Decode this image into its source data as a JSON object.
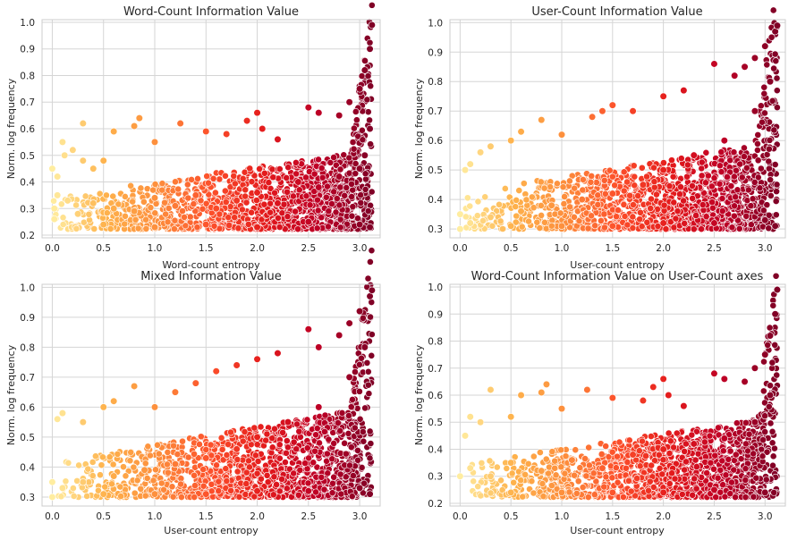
{
  "chart_data": [
    {
      "type": "scatter",
      "title": "Word-Count Information Value",
      "xlabel": "Word-count entropy",
      "ylabel": "Norm. log frequency",
      "xlim": [
        -0.1,
        3.2
      ],
      "ylim": [
        0.19,
        1.01
      ],
      "xticks": [
        "0.0",
        "0.5",
        "1.0",
        "1.5",
        "2.0",
        "2.5",
        "3.0"
      ],
      "yticks": [
        "0.2",
        "0.3",
        "0.4",
        "0.5",
        "0.6",
        "0.7",
        "0.8",
        "0.9",
        "1.0"
      ],
      "grid": true,
      "colormap": [
        "#ffeda0",
        "#feb24c",
        "#fd8d3c",
        "#fc4e2a",
        "#e31a1c",
        "#bd0026",
        "#800026"
      ],
      "points": [
        [
          0.0,
          0.45
        ],
        [
          0.05,
          0.42
        ],
        [
          0.1,
          0.55
        ],
        [
          0.12,
          0.5
        ],
        [
          0.2,
          0.52
        ],
        [
          0.3,
          0.62
        ],
        [
          0.3,
          0.48
        ],
        [
          0.4,
          0.45
        ],
        [
          0.5,
          0.48
        ],
        [
          0.6,
          0.59
        ],
        [
          0.8,
          0.61
        ],
        [
          0.85,
          0.64
        ],
        [
          1.0,
          0.55
        ],
        [
          1.25,
          0.62
        ],
        [
          1.5,
          0.59
        ],
        [
          1.7,
          0.58
        ],
        [
          1.9,
          0.63
        ],
        [
          2.0,
          0.66
        ],
        [
          2.05,
          0.6
        ],
        [
          2.2,
          0.56
        ],
        [
          2.5,
          0.68
        ],
        [
          2.6,
          0.66
        ],
        [
          2.8,
          0.65
        ],
        [
          2.9,
          0.7
        ],
        [
          3.0,
          0.75
        ],
        [
          3.05,
          0.82
        ],
        [
          3.1,
          0.9
        ],
        [
          3.12,
          0.99
        ],
        [
          0.02,
          0.3
        ],
        [
          0.02,
          0.26
        ],
        [
          0.05,
          0.35
        ],
        [
          0.15,
          0.33
        ],
        [
          0.25,
          0.28
        ],
        [
          0.4,
          0.32
        ],
        [
          0.6,
          0.3
        ],
        [
          0.8,
          0.29
        ],
        [
          1.0,
          0.34
        ],
        [
          1.2,
          0.31
        ],
        [
          1.4,
          0.35
        ],
        [
          1.6,
          0.3
        ],
        [
          1.8,
          0.33
        ],
        [
          2.0,
          0.36
        ],
        [
          2.2,
          0.32
        ],
        [
          2.4,
          0.4
        ],
        [
          2.6,
          0.38
        ],
        [
          2.8,
          0.42
        ],
        [
          3.0,
          0.45
        ],
        [
          3.05,
          0.5
        ],
        [
          3.1,
          0.6
        ],
        [
          0.5,
          0.24
        ],
        [
          1.0,
          0.23
        ],
        [
          1.5,
          0.24
        ],
        [
          2.0,
          0.23
        ],
        [
          2.5,
          0.25
        ],
        [
          3.0,
          0.24
        ],
        [
          3.1,
          0.23
        ]
      ]
    },
    {
      "type": "scatter",
      "title": "User-Count Information Value",
      "xlabel": "User-count entropy",
      "ylabel": "Norm. log frequency",
      "xlim": [
        -0.1,
        3.2
      ],
      "ylim": [
        0.27,
        1.01
      ],
      "xticks": [
        "0.0",
        "0.5",
        "1.0",
        "1.5",
        "2.0",
        "2.5",
        "3.0"
      ],
      "yticks": [
        "0.3",
        "0.4",
        "0.5",
        "0.6",
        "0.7",
        "0.8",
        "0.9",
        "1.0"
      ],
      "grid": true,
      "colormap": [
        "#ffeda0",
        "#feb24c",
        "#fd8d3c",
        "#fc4e2a",
        "#e31a1c",
        "#bd0026",
        "#800026"
      ],
      "points": [
        [
          0.0,
          0.3
        ],
        [
          0.0,
          0.35
        ],
        [
          0.05,
          0.5
        ],
        [
          0.1,
          0.52
        ],
        [
          0.2,
          0.56
        ],
        [
          0.3,
          0.58
        ],
        [
          0.5,
          0.6
        ],
        [
          0.6,
          0.63
        ],
        [
          0.8,
          0.67
        ],
        [
          1.0,
          0.62
        ],
        [
          1.3,
          0.68
        ],
        [
          1.4,
          0.7
        ],
        [
          1.5,
          0.72
        ],
        [
          1.7,
          0.7
        ],
        [
          2.0,
          0.75
        ],
        [
          2.2,
          0.77
        ],
        [
          2.5,
          0.86
        ],
        [
          2.7,
          0.82
        ],
        [
          2.8,
          0.85
        ],
        [
          2.9,
          0.88
        ],
        [
          3.0,
          0.92
        ],
        [
          3.1,
          0.97
        ],
        [
          3.12,
          0.99
        ],
        [
          0.1,
          0.32
        ],
        [
          0.3,
          0.34
        ],
        [
          0.6,
          0.36
        ],
        [
          0.9,
          0.38
        ],
        [
          1.2,
          0.4
        ],
        [
          1.5,
          0.42
        ],
        [
          1.8,
          0.45
        ],
        [
          2.0,
          0.5
        ],
        [
          2.3,
          0.55
        ],
        [
          2.6,
          0.6
        ],
        [
          2.9,
          0.7
        ],
        [
          3.05,
          0.8
        ],
        [
          0.5,
          0.31
        ],
        [
          1.0,
          0.31
        ],
        [
          1.5,
          0.31
        ],
        [
          2.0,
          0.32
        ],
        [
          2.5,
          0.32
        ],
        [
          3.0,
          0.33
        ],
        [
          3.1,
          0.31
        ]
      ]
    },
    {
      "type": "scatter",
      "title": "Mixed Information Value",
      "xlabel": "User-count entropy",
      "ylabel": "Norm. log frequency",
      "xlim": [
        -0.1,
        3.2
      ],
      "ylim": [
        0.27,
        1.01
      ],
      "xticks": [
        "0.0",
        "0.5",
        "1.0",
        "1.5",
        "2.0",
        "2.5",
        "3.0"
      ],
      "yticks": [
        "0.3",
        "0.4",
        "0.5",
        "0.6",
        "0.7",
        "0.8",
        "0.9",
        "1.0"
      ],
      "grid": true,
      "colormap": [
        "#ffeda0",
        "#feb24c",
        "#fd8d3c",
        "#fc4e2a",
        "#e31a1c",
        "#bd0026",
        "#800026"
      ],
      "points": [
        [
          0.0,
          0.3
        ],
        [
          0.0,
          0.35
        ],
        [
          0.05,
          0.56
        ],
        [
          0.1,
          0.58
        ],
        [
          0.3,
          0.55
        ],
        [
          0.5,
          0.6
        ],
        [
          0.6,
          0.62
        ],
        [
          0.8,
          0.67
        ],
        [
          1.0,
          0.6
        ],
        [
          1.2,
          0.65
        ],
        [
          1.4,
          0.68
        ],
        [
          1.6,
          0.72
        ],
        [
          1.8,
          0.74
        ],
        [
          2.0,
          0.76
        ],
        [
          2.2,
          0.78
        ],
        [
          2.5,
          0.86
        ],
        [
          2.6,
          0.8
        ],
        [
          2.8,
          0.84
        ],
        [
          2.9,
          0.88
        ],
        [
          3.0,
          0.92
        ],
        [
          3.1,
          0.97
        ],
        [
          3.12,
          0.99
        ],
        [
          0.1,
          0.33
        ],
        [
          0.3,
          0.35
        ],
        [
          0.6,
          0.37
        ],
        [
          0.9,
          0.39
        ],
        [
          1.2,
          0.41
        ],
        [
          1.5,
          0.43
        ],
        [
          1.8,
          0.46
        ],
        [
          2.0,
          0.5
        ],
        [
          2.3,
          0.55
        ],
        [
          2.6,
          0.6
        ],
        [
          2.9,
          0.7
        ],
        [
          3.05,
          0.8
        ],
        [
          0.5,
          0.31
        ],
        [
          1.0,
          0.31
        ],
        [
          1.5,
          0.31
        ],
        [
          2.0,
          0.32
        ],
        [
          2.5,
          0.32
        ],
        [
          3.0,
          0.33
        ],
        [
          3.1,
          0.31
        ]
      ]
    },
    {
      "type": "scatter",
      "title": "Word-Count Information Value on User-Count axes",
      "xlabel": "User-count entropy",
      "ylabel": "Norm. log frequency",
      "xlim": [
        -0.1,
        3.2
      ],
      "ylim": [
        0.19,
        1.01
      ],
      "xticks": [
        "0.0",
        "0.5",
        "1.0",
        "1.5",
        "2.0",
        "2.5",
        "3.0"
      ],
      "yticks": [
        "0.2",
        "0.3",
        "0.4",
        "0.5",
        "0.6",
        "0.7",
        "0.8",
        "0.9",
        "1.0"
      ],
      "grid": true,
      "colormap": [
        "#ffeda0",
        "#feb24c",
        "#fd8d3c",
        "#fc4e2a",
        "#e31a1c",
        "#bd0026",
        "#800026"
      ],
      "points": [
        [
          0.0,
          0.3
        ],
        [
          0.05,
          0.45
        ],
        [
          0.1,
          0.52
        ],
        [
          0.2,
          0.5
        ],
        [
          0.3,
          0.62
        ],
        [
          0.5,
          0.52
        ],
        [
          0.6,
          0.6
        ],
        [
          0.8,
          0.61
        ],
        [
          0.85,
          0.64
        ],
        [
          1.0,
          0.55
        ],
        [
          1.25,
          0.62
        ],
        [
          1.5,
          0.59
        ],
        [
          1.8,
          0.58
        ],
        [
          1.9,
          0.63
        ],
        [
          2.0,
          0.66
        ],
        [
          2.05,
          0.6
        ],
        [
          2.2,
          0.56
        ],
        [
          2.5,
          0.68
        ],
        [
          2.6,
          0.66
        ],
        [
          2.8,
          0.65
        ],
        [
          2.9,
          0.7
        ],
        [
          3.0,
          0.75
        ],
        [
          3.05,
          0.82
        ],
        [
          3.1,
          0.9
        ],
        [
          3.12,
          0.99
        ],
        [
          0.1,
          0.33
        ],
        [
          0.3,
          0.3
        ],
        [
          0.5,
          0.35
        ],
        [
          0.8,
          0.32
        ],
        [
          1.1,
          0.36
        ],
        [
          1.4,
          0.33
        ],
        [
          1.7,
          0.38
        ],
        [
          2.0,
          0.4
        ],
        [
          2.3,
          0.42
        ],
        [
          2.6,
          0.44
        ],
        [
          2.9,
          0.5
        ],
        [
          3.05,
          0.6
        ],
        [
          0.5,
          0.24
        ],
        [
          1.0,
          0.24
        ],
        [
          1.5,
          0.24
        ],
        [
          2.0,
          0.24
        ],
        [
          2.5,
          0.25
        ],
        [
          3.0,
          0.24
        ]
      ]
    }
  ]
}
